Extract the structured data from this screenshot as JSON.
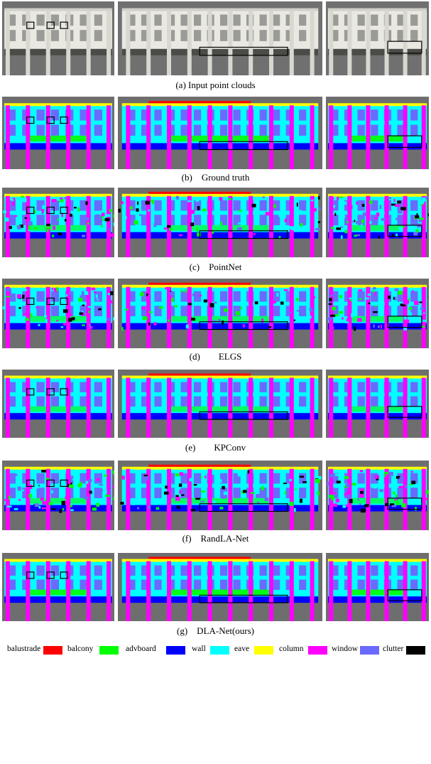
{
  "rows": [
    {
      "caption": "(a) Input point clouds",
      "kind": "input"
    },
    {
      "caption": "(b)    Ground truth",
      "kind": "gt"
    },
    {
      "caption": "(c)    PointNet",
      "kind": "pointnet"
    },
    {
      "caption": "(d)        ELGS",
      "kind": "elgs"
    },
    {
      "caption": "(e)        KPConv",
      "kind": "kpconv"
    },
    {
      "caption": "(f)    RandLA-Net",
      "kind": "randla"
    },
    {
      "caption": "(g)    DLA-Net(ours)",
      "kind": "dla"
    }
  ],
  "legend": [
    {
      "label": "balustrade",
      "color": "#ff0000"
    },
    {
      "label": "balcony",
      "color": "#00ff00"
    },
    {
      "label": "advboard",
      "color": "#0000ff"
    },
    {
      "label": "wall",
      "color": "#00ffff"
    },
    {
      "label": "eave",
      "color": "#ffff00"
    },
    {
      "label": "column",
      "color": "#ff00ff"
    },
    {
      "label": "window",
      "color": "#6a6aff"
    },
    {
      "label": "clutter",
      "color": "#000000"
    }
  ],
  "colors": {
    "background": "#6e6e6e",
    "balustrade": "#ff0000",
    "balcony": "#00ff00",
    "advboard": "#0000ff",
    "wall": "#00ffff",
    "eave": "#ffff00",
    "column": "#ff00ff",
    "window": "#6a6aff",
    "clutter": "#000000"
  }
}
